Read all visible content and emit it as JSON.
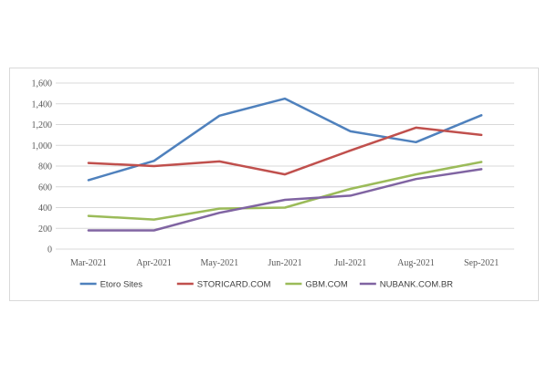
{
  "chart_data": {
    "type": "line",
    "title": "",
    "xlabel": "",
    "ylabel": "",
    "categories": [
      "Mar-2021",
      "Apr-2021",
      "May-2021",
      "Jun-2021",
      "Jul-2021",
      "Aug-2021",
      "Sep-2021"
    ],
    "ylim": [
      0,
      1600
    ],
    "yticks": [
      "0",
      "200",
      "400",
      "600",
      "800",
      "1,000",
      "1,200",
      "1,400",
      "1,600"
    ],
    "grid": true,
    "legend": "bottom",
    "series": [
      {
        "name": "Etoro Sites",
        "color": "#4f81bd",
        "values": [
          665,
          850,
          1285,
          1450,
          1135,
          1030,
          1290
        ]
      },
      {
        "name": "STORICARD.COM",
        "color": "#c0504d",
        "values": [
          830,
          800,
          845,
          720,
          950,
          1170,
          1100
        ]
      },
      {
        "name": "GBM.COM",
        "color": "#9bbb59",
        "values": [
          320,
          285,
          390,
          400,
          580,
          720,
          840
        ]
      },
      {
        "name": "NUBANK.COM.BR",
        "color": "#8064a2",
        "values": [
          180,
          180,
          350,
          475,
          515,
          675,
          770
        ]
      }
    ]
  }
}
